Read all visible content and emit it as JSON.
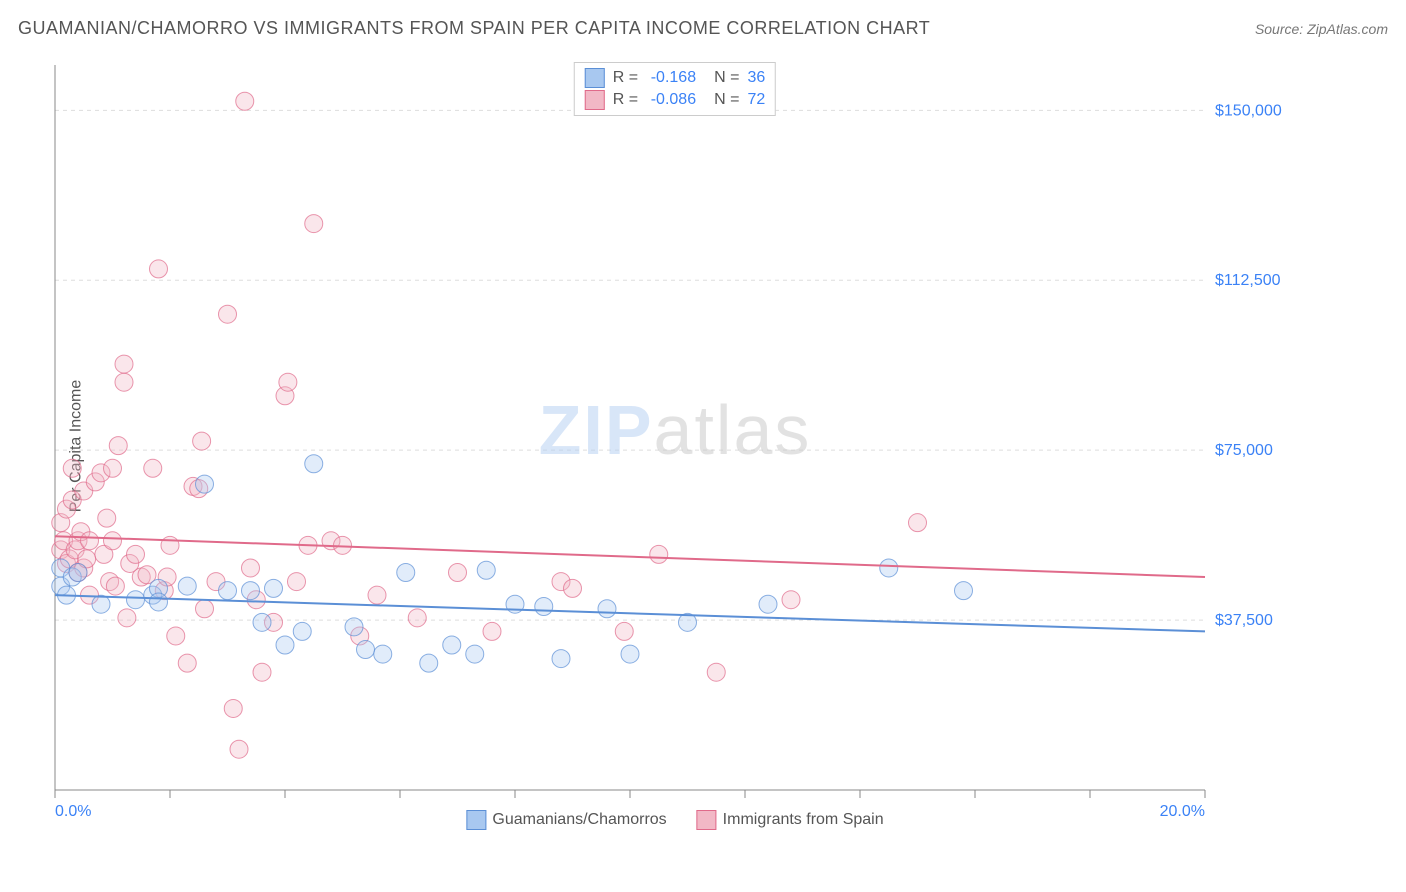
{
  "header": {
    "title": "GUAMANIAN/CHAMORRO VS IMMIGRANTS FROM SPAIN PER CAPITA INCOME CORRELATION CHART",
    "source_prefix": "Source: ",
    "source_name": "ZipAtlas.com"
  },
  "chart": {
    "type": "scatter",
    "ylabel": "Per Capita Income",
    "xlim": [
      0,
      20
    ],
    "ylim": [
      0,
      160000
    ],
    "x_ticks_minor": [
      0,
      2,
      4,
      6,
      8,
      10,
      12,
      14,
      16,
      18,
      20
    ],
    "x_tick_labels": {
      "0": "0.0%",
      "20": "20.0%"
    },
    "y_gridlines": [
      37500,
      75000,
      112500,
      150000
    ],
    "y_tick_labels": [
      "$37,500",
      "$75,000",
      "$112,500",
      "$150,000"
    ],
    "axis_color": "#888888",
    "grid_color": "#dddddd",
    "tick_label_color": "#3b82f6",
    "background_color": "#ffffff",
    "marker_radius": 9,
    "marker_opacity": 0.35,
    "line_width": 2,
    "series": [
      {
        "name": "Guamanians/Chamorros",
        "color_fill": "#a8c8f0",
        "color_stroke": "#5b8fd6",
        "r_label": "R =",
        "r_value": "-0.168",
        "n_label": "N =",
        "n_value": "36",
        "trend": {
          "y_at_x0": 43000,
          "y_at_x20": 35000
        },
        "points": [
          [
            0.1,
            49000
          ],
          [
            0.1,
            45000
          ],
          [
            0.2,
            43000
          ],
          [
            0.3,
            47000
          ],
          [
            0.4,
            48000
          ],
          [
            0.8,
            41000
          ],
          [
            1.4,
            42000
          ],
          [
            1.7,
            43000
          ],
          [
            1.8,
            44500
          ],
          [
            1.8,
            41500
          ],
          [
            2.3,
            45000
          ],
          [
            2.6,
            67500
          ],
          [
            3.0,
            44000
          ],
          [
            3.4,
            44000
          ],
          [
            3.6,
            37000
          ],
          [
            3.8,
            44500
          ],
          [
            4.0,
            32000
          ],
          [
            4.3,
            35000
          ],
          [
            4.5,
            72000
          ],
          [
            5.2,
            36000
          ],
          [
            5.4,
            31000
          ],
          [
            5.7,
            30000
          ],
          [
            6.1,
            48000
          ],
          [
            6.5,
            28000
          ],
          [
            6.9,
            32000
          ],
          [
            7.3,
            30000
          ],
          [
            7.5,
            48500
          ],
          [
            8.0,
            41000
          ],
          [
            8.5,
            40500
          ],
          [
            8.8,
            29000
          ],
          [
            9.6,
            40000
          ],
          [
            10.0,
            30000
          ],
          [
            11.0,
            37000
          ],
          [
            12.4,
            41000
          ],
          [
            14.5,
            49000
          ],
          [
            15.8,
            44000
          ]
        ]
      },
      {
        "name": "Immigrants from Spain",
        "color_fill": "#f2b8c6",
        "color_stroke": "#e06a8a",
        "r_label": "R =",
        "r_value": "-0.086",
        "n_label": "N =",
        "n_value": "72",
        "trend": {
          "y_at_x0": 56000,
          "y_at_x20": 47000
        },
        "points": [
          [
            0.1,
            53000
          ],
          [
            0.1,
            59000
          ],
          [
            0.15,
            55000
          ],
          [
            0.2,
            50000
          ],
          [
            0.2,
            62000
          ],
          [
            0.25,
            51000
          ],
          [
            0.3,
            64000
          ],
          [
            0.3,
            71000
          ],
          [
            0.35,
            53000
          ],
          [
            0.4,
            55000
          ],
          [
            0.4,
            48000
          ],
          [
            0.45,
            57000
          ],
          [
            0.5,
            49000
          ],
          [
            0.5,
            66000
          ],
          [
            0.55,
            51000
          ],
          [
            0.6,
            55000
          ],
          [
            0.6,
            43000
          ],
          [
            0.7,
            68000
          ],
          [
            0.8,
            70000
          ],
          [
            0.85,
            52000
          ],
          [
            0.9,
            60000
          ],
          [
            0.95,
            46000
          ],
          [
            1.0,
            71000
          ],
          [
            1.0,
            55000
          ],
          [
            1.05,
            45000
          ],
          [
            1.1,
            76000
          ],
          [
            1.2,
            90000
          ],
          [
            1.2,
            94000
          ],
          [
            1.25,
            38000
          ],
          [
            1.3,
            50000
          ],
          [
            1.4,
            52000
          ],
          [
            1.5,
            47000
          ],
          [
            1.6,
            47500
          ],
          [
            1.7,
            71000
          ],
          [
            1.8,
            115000
          ],
          [
            1.9,
            44000
          ],
          [
            1.95,
            47000
          ],
          [
            2.0,
            54000
          ],
          [
            2.1,
            34000
          ],
          [
            2.3,
            28000
          ],
          [
            2.4,
            67000
          ],
          [
            2.5,
            66500
          ],
          [
            2.55,
            77000
          ],
          [
            2.6,
            40000
          ],
          [
            2.8,
            46000
          ],
          [
            3.0,
            105000
          ],
          [
            3.1,
            18000
          ],
          [
            3.2,
            9000
          ],
          [
            3.3,
            152000
          ],
          [
            3.4,
            49000
          ],
          [
            3.5,
            42000
          ],
          [
            3.6,
            26000
          ],
          [
            3.8,
            37000
          ],
          [
            4.0,
            87000
          ],
          [
            4.05,
            90000
          ],
          [
            4.2,
            46000
          ],
          [
            4.4,
            54000
          ],
          [
            4.5,
            125000
          ],
          [
            4.8,
            55000
          ],
          [
            5.0,
            54000
          ],
          [
            5.3,
            34000
          ],
          [
            5.6,
            43000
          ],
          [
            6.3,
            38000
          ],
          [
            7.0,
            48000
          ],
          [
            7.6,
            35000
          ],
          [
            8.8,
            46000
          ],
          [
            9.0,
            44500
          ],
          [
            9.9,
            35000
          ],
          [
            10.5,
            52000
          ],
          [
            11.5,
            26000
          ],
          [
            12.8,
            42000
          ],
          [
            15.0,
            59000
          ]
        ]
      }
    ],
    "bottom_legend": [
      {
        "label": "Guamanians/Chamorros",
        "series": 0
      },
      {
        "label": "Immigrants from Spain",
        "series": 1
      }
    ],
    "watermark": {
      "part1": "ZIP",
      "part2": "atlas"
    }
  }
}
